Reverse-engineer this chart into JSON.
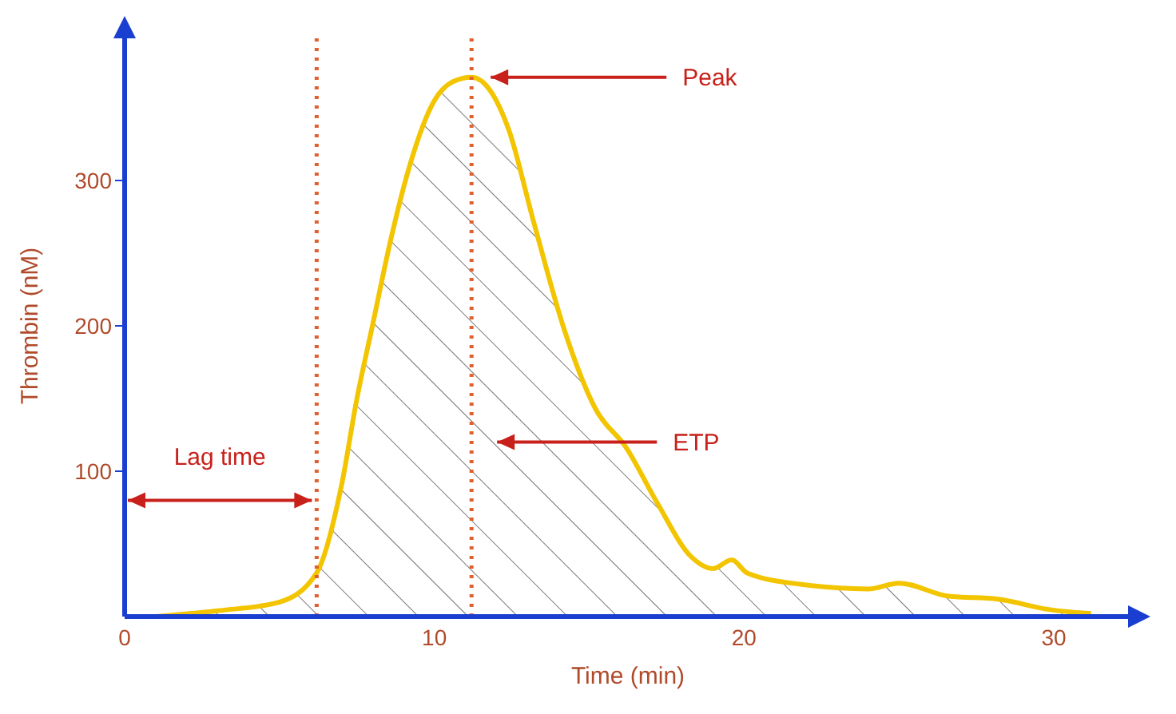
{
  "chart_data": {
    "type": "area",
    "xlabel": "Time (min)",
    "ylabel": "Thrombin (nM)",
    "series": [
      {
        "color": "#f2c500",
        "x": [
          1,
          3,
          5,
          6.2,
          7,
          7.5,
          8,
          8.6,
          9.2,
          10,
          10.6,
          11.2,
          11.8,
          12.4,
          13.2,
          14.2,
          15.2,
          16.2,
          17.2,
          18.3,
          19,
          19.6,
          20.1,
          21.9,
          24,
          25,
          26.6,
          28.2,
          29.8,
          30.6,
          31.2
        ],
        "values": [
          0,
          4,
          10,
          30,
          90,
          150,
          200,
          260,
          310,
          355,
          368,
          371,
          362,
          335,
          272,
          197,
          143,
          116,
          78,
          41,
          33,
          39,
          30,
          22,
          19,
          23,
          14,
          12,
          5,
          3,
          2
        ]
      }
    ],
    "xlim": [
      0,
      32.5
    ],
    "xticks": [
      0,
      10,
      20,
      30
    ],
    "ylim": [
      0,
      400
    ],
    "yticks": [
      100,
      200,
      300
    ],
    "grid": false,
    "ref_lines": [
      {
        "axis": "x",
        "value": 6.2,
        "color": "#e06030",
        "line_style": "dotted"
      },
      {
        "axis": "x",
        "value": 11.2,
        "color": "#e06030",
        "line_style": "dotted"
      }
    ],
    "annotations": [
      "Peak",
      "ETP",
      "Lag time"
    ]
  }
}
